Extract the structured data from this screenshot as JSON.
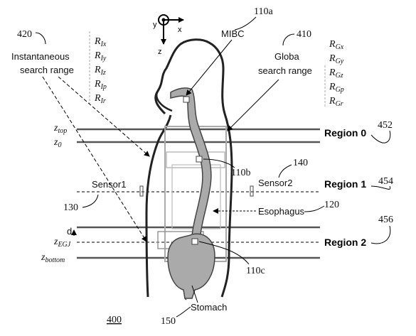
{
  "references": {
    "ref_110a": "110a",
    "ref_420": "420",
    "ref_410": "410",
    "ref_452": "452",
    "ref_454": "454",
    "ref_456": "456",
    "ref_140": "140",
    "ref_120": "120",
    "ref_130": "130",
    "ref_110b": "110b",
    "ref_110c": "110c",
    "ref_150": "150",
    "ref_400": "400"
  },
  "labels": {
    "mibc": "MIBC",
    "instant_line1": "Instantaneous",
    "instant_line2": "search range",
    "global_line1": "Globa",
    "global_line2": "search range",
    "sensor1": "Sensor1",
    "sensor2": "Sensor2",
    "esophagus": "Esophagus",
    "stomach": "Stomach",
    "d": "d"
  },
  "axes": {
    "x": "x",
    "y": "y",
    "z": "z"
  },
  "levels": {
    "z_top": "z",
    "z_top_sub": "top",
    "z_0": "z",
    "z_0_sub": "0",
    "z_egj": "z",
    "z_egj_sub": "EGJ",
    "z_bottom": "z",
    "z_bottom_sub": "bottom"
  },
  "regions": {
    "r0": "Region 0",
    "r1": "Region 1",
    "r2": "Region 2"
  },
  "instantaneous_range": [
    {
      "main": "R",
      "sub": "Ix"
    },
    {
      "main": "R",
      "sub": "Iy"
    },
    {
      "main": "R",
      "sub": "Iz"
    },
    {
      "main": "R",
      "sub": "Ip"
    },
    {
      "main": "R",
      "sub": "Ir"
    }
  ],
  "global_range": [
    {
      "main": "R",
      "sub": "Gx"
    },
    {
      "main": "R",
      "sub": "Gy"
    },
    {
      "main": "R",
      "sub": "Gz"
    },
    {
      "main": "R",
      "sub": "Gp"
    },
    {
      "main": "R",
      "sub": "Gr"
    }
  ]
}
